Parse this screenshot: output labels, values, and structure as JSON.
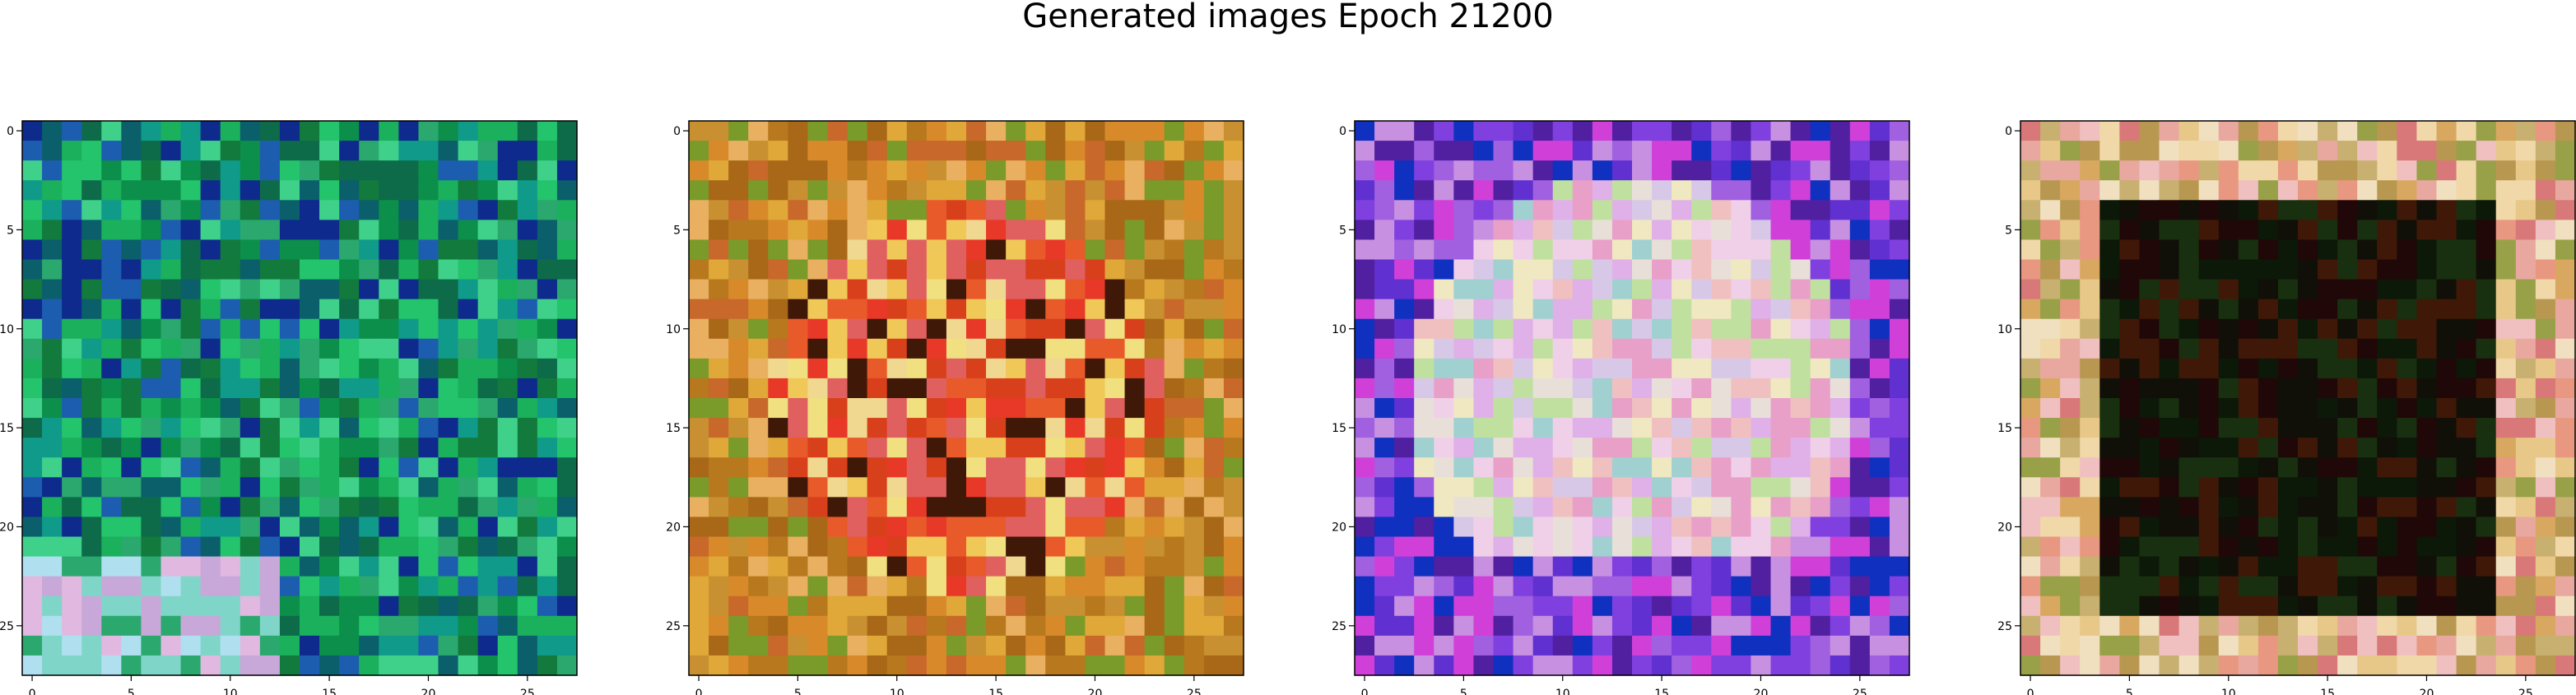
{
  "figure": {
    "title": "Generated images Epoch 21200"
  },
  "colors": {
    "axis": "#000000",
    "background": "#ffffff"
  },
  "axis_ticks": {
    "x_labels": [
      "0",
      "5",
      "10",
      "15",
      "20",
      "25"
    ],
    "y_labels": [
      "0",
      "5",
      "10",
      "15",
      "20",
      "25"
    ]
  },
  "chart_data": {
    "type": "heatmap",
    "title": "Generated images Epoch 21200",
    "grid": false,
    "images": [
      {
        "index": 1,
        "rows": 28,
        "cols": 28,
        "xlim": [
          -0.5,
          27.5
        ],
        "ylim": [
          27.5,
          -0.5
        ],
        "xticks": [
          0,
          5,
          10,
          15,
          20,
          25
        ],
        "yticks": [
          0,
          5,
          10,
          15,
          20,
          25
        ],
        "palette": [
          "#0b8f4a",
          "#127a3c",
          "#1bb05c",
          "#0d6b4a",
          "#23c46b",
          "#0f9a8a",
          "#0a5f6b",
          "#1d5db0",
          "#0d2a8c",
          "#3fd18a",
          "#2aa86e",
          "#7fd6c8",
          "#c8a8d8",
          "#e0b8e0",
          "#b0e0f0",
          "#041a12"
        ]
      },
      {
        "index": 2,
        "rows": 28,
        "cols": 28,
        "xlim": [
          -0.5,
          27.5
        ],
        "ylim": [
          27.5,
          -0.5
        ],
        "xticks": [
          0,
          5,
          10,
          15,
          20,
          25
        ],
        "yticks": [
          0,
          5,
          10,
          15,
          20,
          25
        ],
        "palette": [
          "#d88a2a",
          "#e0a838",
          "#c8682a",
          "#e85a2a",
          "#f0c858",
          "#d8401c",
          "#e8b060",
          "#b8781e",
          "#f0d890",
          "#a86818",
          "#e83828",
          "#c89030",
          "#7a9a2a",
          "#e06060",
          "#401808",
          "#f0e080"
        ]
      },
      {
        "index": 3,
        "rows": 28,
        "cols": 28,
        "xlim": [
          -0.5,
          27.5
        ],
        "ylim": [
          27.5,
          -0.5
        ],
        "xticks": [
          0,
          5,
          10,
          15,
          20,
          25
        ],
        "yticks": [
          0,
          5,
          10,
          15,
          20,
          25
        ],
        "palette": [
          "#e0b0e8",
          "#c890e0",
          "#f0d0e8",
          "#e8e0d8",
          "#d8c8e8",
          "#a060e0",
          "#8040e0",
          "#c0e0a0",
          "#f0c0c0",
          "#6030d0",
          "#e8a0c8",
          "#a0d0d0",
          "#5020a0",
          "#f0e8c0",
          "#d040d8",
          "#1030c0"
        ]
      },
      {
        "index": 4,
        "rows": 28,
        "cols": 28,
        "xlim": [
          -0.5,
          27.5
        ],
        "ylim": [
          27.5,
          -0.5
        ],
        "xticks": [
          0,
          5,
          10,
          15,
          20,
          25
        ],
        "yticks": [
          0,
          5,
          10,
          15,
          20,
          25
        ],
        "palette": [
          "#e8c888",
          "#f0d8a8",
          "#d8a860",
          "#e8a8a0",
          "#c8b070",
          "#f0e0c0",
          "#e89880",
          "#b89850",
          "#f0c0c0",
          "#98a048",
          "#d87878",
          "#101008",
          "#200808",
          "#0c1808",
          "#183010",
          "#401808"
        ]
      }
    ]
  }
}
